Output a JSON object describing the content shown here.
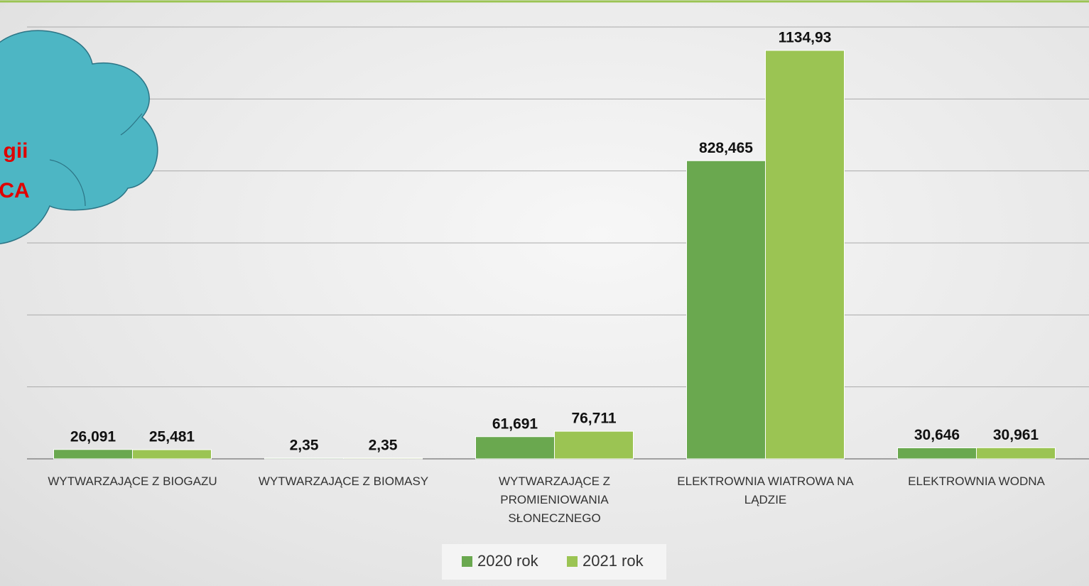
{
  "chart_data": {
    "type": "bar",
    "categories": [
      "WYTWARZAJĄCE Z BIOGAZU",
      "WYTWARZAJĄCE Z BIOMASY",
      "WYTWARZAJĄCE Z PROMIENIOWANIA SŁONECZNEGO",
      "ELEKTROWNIA WIATROWA NA LĄDZIE",
      "ELEKTROWNIA WODNA"
    ],
    "series": [
      {
        "name": "2020 rok",
        "color": "#6aa84f",
        "values": [
          26.091,
          2.35,
          61.691,
          828.465,
          30.646
        ],
        "value_labels": [
          "26,091",
          "2,35",
          "61,691",
          "828,465",
          "30,646"
        ]
      },
      {
        "name": "2021 rok",
        "color": "#9bc453",
        "values": [
          25.481,
          2.35,
          76.711,
          1134.93,
          30.961
        ],
        "value_labels": [
          "25,481",
          "2,35",
          "76,711",
          "1134,93",
          "30,961"
        ]
      }
    ],
    "ylim": [
      0,
      1200
    ],
    "yticks": [
      0,
      200,
      400,
      600,
      800,
      1000,
      1200
    ],
    "grid": true,
    "legend": "bottom",
    "annotations": [
      "gii",
      "CA"
    ]
  }
}
